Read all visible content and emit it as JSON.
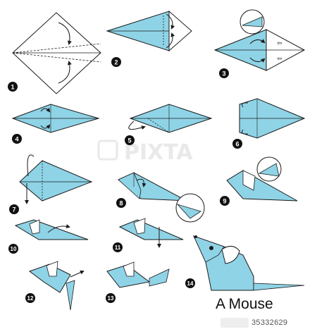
{
  "title": "A Mouse",
  "watermark": {
    "text": "PIXTA",
    "stock_id": "35332629"
  },
  "steps": [
    "1",
    "2",
    "3",
    "4",
    "5",
    "6",
    "7",
    "8",
    "9",
    "10",
    "11",
    "12",
    "13",
    "14"
  ],
  "colors": {
    "paper": "#8fd3e6",
    "paper_light": "#ffffff",
    "outline": "#1a1a1a",
    "badge": "#111111",
    "badge_text": "#ffffff",
    "watermark": "#dcdcdc"
  }
}
